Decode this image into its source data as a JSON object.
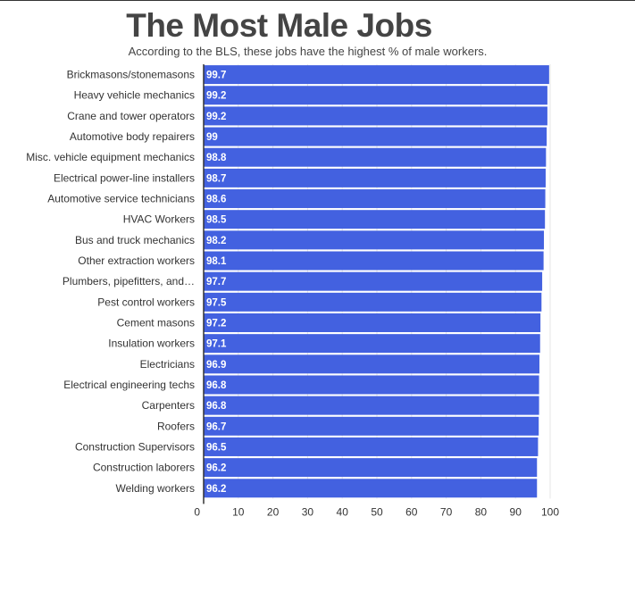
{
  "chart_data": {
    "type": "bar",
    "orientation": "horizontal",
    "title": "The Most Male Jobs",
    "subtitle": "According to the BLS, these jobs have the highest % of male workers.",
    "categories": [
      "Brickmasons/stonemasons",
      "Heavy vehicle mechanics",
      "Crane and tower operators",
      "Automotive body repairers",
      "Misc. vehicle equipment mechanics",
      "Electrical power-line installers",
      "Automotive service technicians",
      "HVAC Workers",
      "Bus and truck mechanics",
      "Other extraction workers",
      "Plumbers, pipefitters, and…",
      "Pest control workers",
      "Cement masons",
      "Insulation workers",
      "Electricians",
      "Electrical engineering techs",
      "Carpenters",
      "Roofers",
      "Construction Supervisors",
      "Construction laborers",
      "Welding workers"
    ],
    "values": [
      99.7,
      99.2,
      99.2,
      99,
      98.8,
      98.7,
      98.6,
      98.5,
      98.2,
      98.1,
      97.7,
      97.5,
      97.2,
      97.1,
      96.9,
      96.8,
      96.8,
      96.7,
      96.5,
      96.2,
      96.2
    ],
    "data_labels": [
      "99.7",
      "99.2",
      "99.2",
      "99",
      "98.8",
      "98.7",
      "98.6",
      "98.5",
      "98.2",
      "98.1",
      "97.7",
      "97.5",
      "97.2",
      "97.1",
      "96.9",
      "96.8",
      "96.8",
      "96.7",
      "96.5",
      "96.2",
      "96.2"
    ],
    "xlim": [
      0,
      100
    ],
    "xticks": [
      0,
      10,
      20,
      30,
      40,
      50,
      60,
      70,
      80,
      90,
      100
    ],
    "xtick_labels": [
      "0",
      "10",
      "20",
      "30",
      "40",
      "50",
      "60",
      "70",
      "80",
      "90",
      "100"
    ],
    "xlabel": "",
    "ylabel": "",
    "grid": true,
    "legend": "none",
    "bar_color": "#4361e0"
  }
}
